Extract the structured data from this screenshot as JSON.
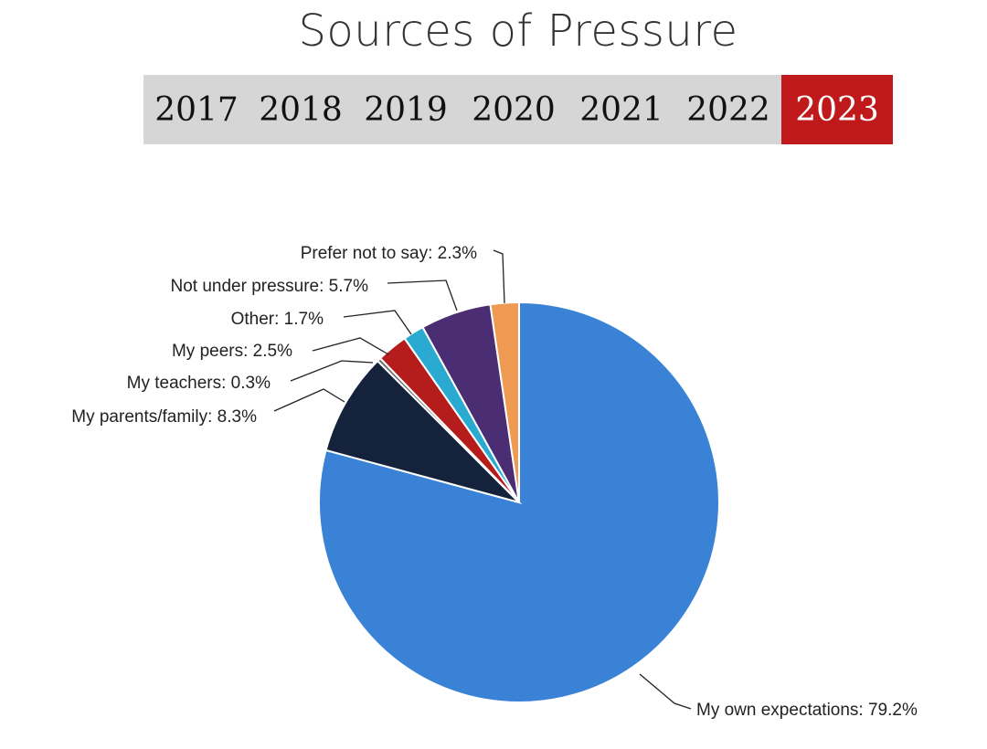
{
  "header": {
    "title": "Sources of Pressure",
    "years": [
      "2017",
      "2018",
      "2019",
      "2020",
      "2021",
      "2022",
      "2023"
    ],
    "active_year": "2023"
  },
  "chart_data": {
    "type": "pie",
    "title": "Sources of Pressure",
    "slices": [
      {
        "name": "My own expectations",
        "value": 79.2,
        "label": "My own expectations",
        "value_label": "79.2%",
        "color": "#3a82d6"
      },
      {
        "name": "My parents/family",
        "value": 8.3,
        "label": "My parents/family",
        "value_label": "8.3%",
        "color": "#14233b"
      },
      {
        "name": "My teachers",
        "value": 0.3,
        "label": "My teachers",
        "value_label": "0.3%",
        "color": "#6b6b6b"
      },
      {
        "name": "My peers",
        "value": 2.5,
        "label": "My peers",
        "value_label": "2.5%",
        "color": "#b51d1d"
      },
      {
        "name": "Other",
        "value": 1.7,
        "label": "Other",
        "value_label": "1.7%",
        "color": "#2aaad0"
      },
      {
        "name": "Not under pressure",
        "value": 5.7,
        "label": "Not under pressure",
        "value_label": "5.7%",
        "color": "#4a2d72"
      },
      {
        "name": "Prefer not to say",
        "value": 2.3,
        "label": "Prefer not to say",
        "value_label": "2.3%",
        "color": "#ee9a52"
      }
    ],
    "start": "12 o'clock",
    "direction": "clockwise"
  }
}
